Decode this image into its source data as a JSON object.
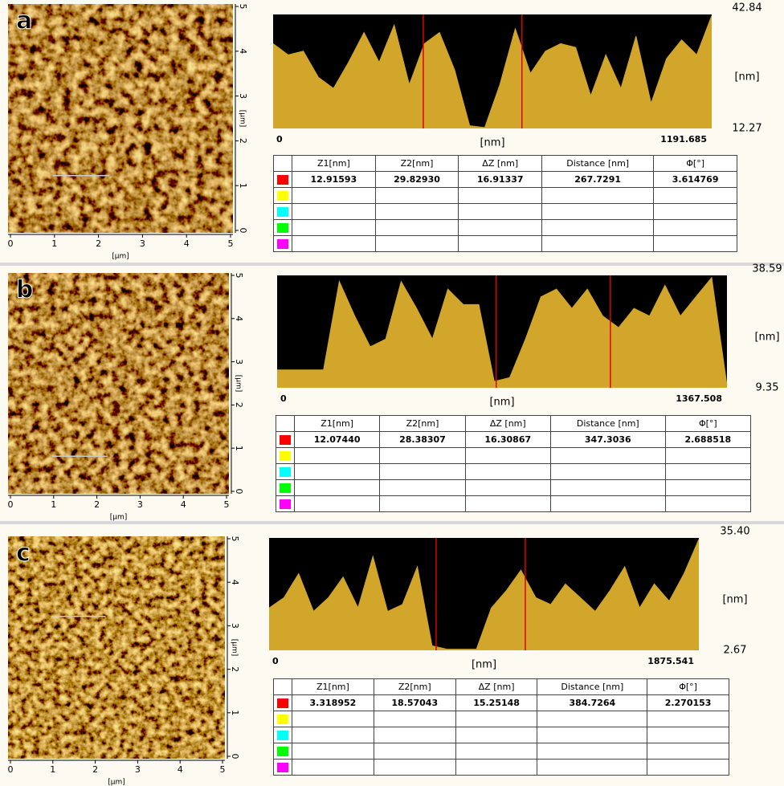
{
  "panels": [
    {
      "label": "a",
      "image": {
        "xticks": [
          0,
          1,
          2,
          3,
          4,
          5
        ],
        "yticks": [
          0,
          1,
          2,
          3,
          4,
          5
        ],
        "xlabel": "[µm]",
        "ylabel": "[µm]"
      },
      "profile": {
        "type": "area",
        "color": "#d2a62a",
        "background": "#000000",
        "cursor_color": "#e00000",
        "xlim": [
          0,
          1191.685
        ],
        "ylim": [
          12.27,
          42.84
        ],
        "xticks": [
          0,
          1191.685
        ],
        "yticks": [
          12.27,
          42.84
        ],
        "xlabel": "[nm]",
        "ylabel": "[nm]",
        "cursors": [
          408,
          676
        ],
        "x": [
          0,
          41,
          82,
          123,
          164,
          205,
          247,
          288,
          329,
          370,
          411,
          452,
          493,
          534,
          575,
          616,
          658,
          699,
          740,
          781,
          822,
          863,
          904,
          945,
          986,
          1027,
          1069,
          1110,
          1151,
          1191.685
        ],
        "values": [
          35,
          32,
          33,
          26,
          23,
          30,
          38,
          30,
          40,
          24,
          35,
          38,
          28,
          13,
          12.5,
          24,
          39,
          27,
          33,
          35,
          34,
          21,
          32,
          23,
          37,
          19,
          31,
          36,
          32,
          42.5
        ]
      },
      "table": {
        "columns": [
          "Z1[nm]",
          "Z2[nm]",
          "ΔZ [nm]",
          "Distance [nm]",
          "Φ[°]"
        ],
        "rows": [
          [
            "12.91593",
            "29.82930",
            "16.91337",
            "267.7291",
            "3.614769"
          ]
        ],
        "row_colors": [
          "#ff0000",
          "#ffff00",
          "#00ffff",
          "#00ff00",
          "#ff00ff"
        ]
      }
    },
    {
      "label": "b",
      "image": {
        "xticks": [
          0,
          1,
          2,
          3,
          4,
          5
        ],
        "yticks": [
          0,
          1,
          2,
          3,
          4,
          5
        ],
        "xlabel": "[µm]",
        "ylabel": "[µm]"
      },
      "profile": {
        "type": "area",
        "color": "#d2a62a",
        "background": "#000000",
        "cursor_color": "#e00000",
        "xlim": [
          0,
          1367.508
        ],
        "ylim": [
          9.35,
          38.59
        ],
        "xticks": [
          0,
          1367.508
        ],
        "yticks": [
          9.35,
          38.59
        ],
        "xlabel": "[nm]",
        "ylabel": "[nm]",
        "cursors": [
          666,
          1013
        ],
        "x": [
          0,
          47,
          94,
          141,
          189,
          236,
          283,
          330,
          377,
          424,
          472,
          519,
          566,
          613,
          660,
          707,
          755,
          802,
          849,
          896,
          943,
          990,
          1038,
          1085,
          1132,
          1179,
          1226,
          1273,
          1321,
          1367.508
        ],
        "values": [
          14,
          14,
          14,
          14,
          37,
          28,
          20,
          22,
          37,
          30,
          22,
          35,
          31,
          31,
          11,
          12,
          22,
          33,
          35,
          30,
          35,
          28,
          25,
          30,
          28,
          36,
          28,
          33,
          38,
          10
        ]
      },
      "table": {
        "columns": [
          "Z1[nm]",
          "Z2[nm]",
          "ΔZ [nm]",
          "Distance [nm]",
          "Φ[°]"
        ],
        "rows": [
          [
            "12.07440",
            "28.38307",
            "16.30867",
            "347.3036",
            "2.688518"
          ]
        ],
        "row_colors": [
          "#ff0000",
          "#ffff00",
          "#00ffff",
          "#00ff00",
          "#ff00ff"
        ]
      }
    },
    {
      "label": "c",
      "image": {
        "xticks": [
          0,
          1,
          2,
          3,
          4,
          5
        ],
        "yticks": [
          0,
          1,
          2,
          3,
          4,
          5
        ],
        "xlabel": "[µm]",
        "ylabel": "[µm]"
      },
      "profile": {
        "type": "area",
        "color": "#d2a62a",
        "background": "#000000",
        "cursor_color": "#e00000",
        "xlim": [
          0,
          1875.541
        ],
        "ylim": [
          2.67,
          35.4
        ],
        "xticks": [
          0,
          1875.541
        ],
        "yticks": [
          2.67,
          {
            "value": 35.4,
            "label": "35.40"
          }
        ],
        "xlabel": "[nm]",
        "ylabel": "[nm]",
        "cursors": [
          729,
          1118
        ],
        "x": [
          0,
          65,
          129,
          194,
          259,
          323,
          388,
          453,
          517,
          582,
          647,
          711,
          776,
          841,
          905,
          970,
          1035,
          1099,
          1164,
          1229,
          1293,
          1358,
          1423,
          1487,
          1552,
          1617,
          1681,
          1746,
          1811,
          1875.541
        ],
        "values": [
          15,
          18,
          25,
          14,
          18,
          24,
          15,
          30,
          14,
          16,
          27,
          4,
          3,
          3,
          3,
          15,
          20,
          26,
          18,
          16,
          22,
          18,
          14,
          20,
          27,
          15,
          22,
          17,
          25,
          35
        ]
      },
      "table": {
        "columns": [
          "Z1[nm]",
          "Z2[nm]",
          "ΔZ [nm]",
          "Distance [nm]",
          "Φ[°]"
        ],
        "rows": [
          [
            "3.318952",
            "18.57043",
            "15.25148",
            "384.7264",
            "2.270153"
          ]
        ],
        "row_colors": [
          "#ff0000",
          "#ffff00",
          "#00ffff",
          "#00ff00",
          "#ff00ff"
        ]
      }
    }
  ]
}
